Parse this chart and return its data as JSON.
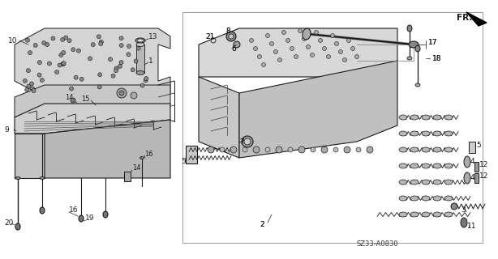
{
  "bg_color": "#f5f5f0",
  "line_color": "#1a1a1a",
  "fig_width": 6.14,
  "fig_height": 3.2,
  "dpi": 100,
  "diagram_code": "SZ33-A0830",
  "fr_label": "FR.",
  "white": "#ffffff",
  "light_gray": "#d4d4d4",
  "mid_gray": "#b0b0b0",
  "dark_gray": "#888888"
}
